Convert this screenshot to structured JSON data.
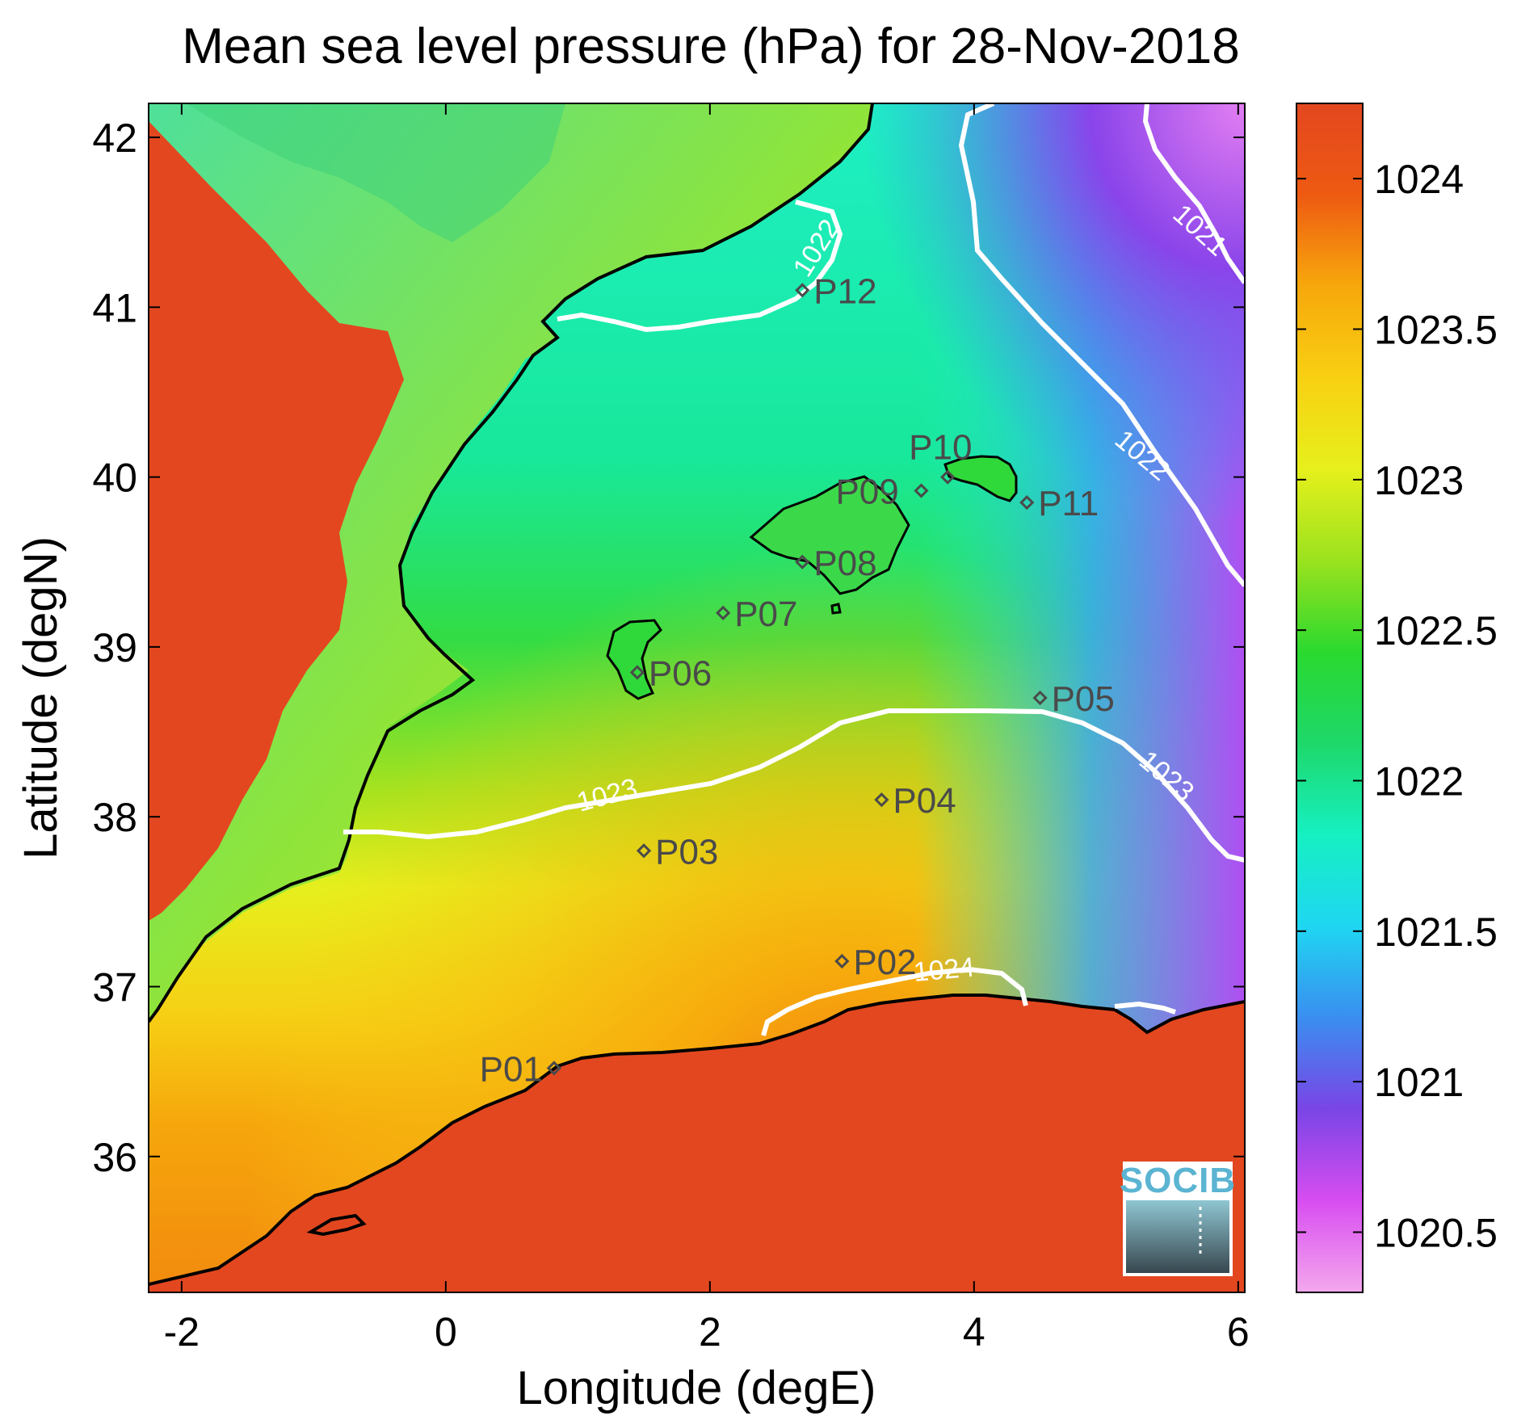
{
  "title": "Mean sea level pressure (hPa) for 28-Nov-2018",
  "x_axis": {
    "label": "Longitude (degE)",
    "range": [
      -2.25,
      6.05
    ],
    "ticks": [
      {
        "value": -2,
        "label": "-2"
      },
      {
        "value": 0,
        "label": "0"
      },
      {
        "value": 2,
        "label": "2"
      },
      {
        "value": 4,
        "label": "4"
      },
      {
        "value": 6,
        "label": "6"
      }
    ]
  },
  "y_axis": {
    "label": "Latitude (degN)",
    "range": [
      35.2,
      42.2
    ],
    "ticks": [
      {
        "value": 36,
        "label": "36"
      },
      {
        "value": 37,
        "label": "37"
      },
      {
        "value": 38,
        "label": "38"
      },
      {
        "value": 39,
        "label": "39"
      },
      {
        "value": 40,
        "label": "40"
      },
      {
        "value": 41,
        "label": "41"
      },
      {
        "value": 42,
        "label": "42"
      }
    ]
  },
  "colorbar": {
    "range": [
      1020.3,
      1024.25
    ],
    "ticks": [
      {
        "value": 1024,
        "label": "1024"
      },
      {
        "value": 1023.5,
        "label": "1023.5"
      },
      {
        "value": 1023,
        "label": "1023"
      },
      {
        "value": 1022.5,
        "label": "1022.5"
      },
      {
        "value": 1022,
        "label": "1022"
      },
      {
        "value": 1021.5,
        "label": "1021.5"
      },
      {
        "value": 1021,
        "label": "1021"
      },
      {
        "value": 1020.5,
        "label": "1020.5"
      }
    ],
    "colors": [
      "#f4a8ee",
      "#d84df0",
      "#7a45e6",
      "#3a8ef0",
      "#1fd6f2",
      "#16f0c2",
      "#1ed86a",
      "#2ad92f",
      "#9ae21e",
      "#e6f01c",
      "#f8d012",
      "#f7a80c",
      "#ee5a12",
      "#e3471f"
    ]
  },
  "stations": [
    {
      "id": "P01",
      "lon": 0.82,
      "lat": 36.52
    },
    {
      "id": "P02",
      "lon": 3.0,
      "lat": 37.15
    },
    {
      "id": "P03",
      "lon": 1.5,
      "lat": 37.8
    },
    {
      "id": "P04",
      "lon": 3.3,
      "lat": 38.1
    },
    {
      "id": "P05",
      "lon": 4.5,
      "lat": 38.7
    },
    {
      "id": "P06",
      "lon": 1.45,
      "lat": 38.85
    },
    {
      "id": "P07",
      "lon": 2.1,
      "lat": 39.2
    },
    {
      "id": "P08",
      "lon": 2.7,
      "lat": 39.5
    },
    {
      "id": "P09",
      "lon": 3.6,
      "lat": 39.92
    },
    {
      "id": "P10",
      "lon": 3.8,
      "lat": 40.0
    },
    {
      "id": "P11",
      "lon": 4.4,
      "lat": 39.85
    },
    {
      "id": "P12",
      "lon": 2.7,
      "lat": 41.1
    }
  ],
  "contour_labels": [
    {
      "text": "1021"
    },
    {
      "text": "1022"
    },
    {
      "text": "1022"
    },
    {
      "text": "1023"
    },
    {
      "text": "1023"
    },
    {
      "text": "1024"
    }
  ],
  "logo": {
    "text": "SOCIB"
  },
  "land_color": "#e3471f",
  "coast_color": "#000000",
  "contour_color": "#ffffff"
}
